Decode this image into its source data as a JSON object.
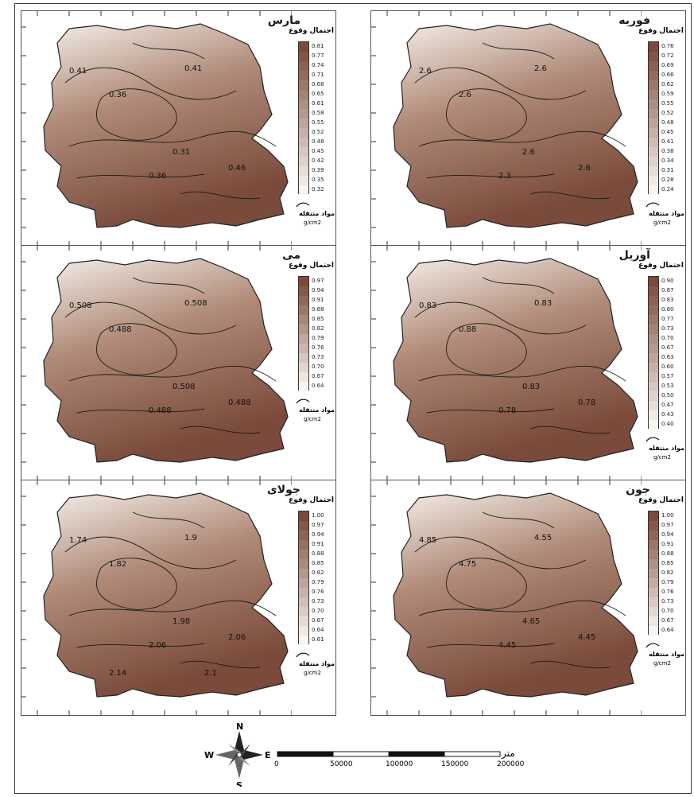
{
  "legend": {
    "title": "احتمال وقوع",
    "sediment_label": "مواد منتقله",
    "unit": "g/cm2"
  },
  "panels": [
    {
      "id": "march",
      "title": "مارس",
      "ticks": [
        "0.81",
        "0.77",
        "0.74",
        "0.71",
        "0.68",
        "0.65",
        "0.61",
        "0.58",
        "0.55",
        "0.52",
        "0.48",
        "0.45",
        "0.42",
        "0.39",
        "0.35",
        "0.32"
      ],
      "contours": [
        "0.41",
        "0.36",
        "0.41",
        "0.31",
        "0.36",
        "0.46"
      ]
    },
    {
      "id": "february",
      "title": "فوریه",
      "ticks": [
        "0.76",
        "0.72",
        "0.69",
        "0.66",
        "0.62",
        "0.59",
        "0.55",
        "0.52",
        "0.48",
        "0.45",
        "0.41",
        "0.38",
        "0.34",
        "0.31",
        "0.28",
        "0.24"
      ],
      "contours": [
        "2.6",
        "2.6",
        "2.6",
        "2.6",
        "2.3",
        "2.6"
      ]
    },
    {
      "id": "may",
      "title": "می",
      "ticks": [
        "0.97",
        "0.94",
        "0.91",
        "0.88",
        "0.85",
        "0.82",
        "0.79",
        "0.76",
        "0.73",
        "0.70",
        "0.67",
        "0.64"
      ],
      "contours": [
        "0.508",
        "0.488",
        "0.508",
        "0.508",
        "0.488",
        "0.488"
      ]
    },
    {
      "id": "april",
      "title": "آوریل",
      "ticks": [
        "0.90",
        "0.87",
        "0.83",
        "0.80",
        "0.77",
        "0.73",
        "0.70",
        "0.67",
        "0.63",
        "0.60",
        "0.57",
        "0.53",
        "0.50",
        "0.47",
        "0.43",
        "0.40"
      ],
      "contours": [
        "0.83",
        "0.88",
        "0.83",
        "0.83",
        "0.78",
        "0.78"
      ]
    },
    {
      "id": "july",
      "title": "جولای",
      "ticks": [
        "1.00",
        "0.97",
        "0.94",
        "0.91",
        "0.88",
        "0.85",
        "0.82",
        "0.79",
        "0.76",
        "0.73",
        "0.70",
        "0.67",
        "0.64",
        "0.61"
      ],
      "contours": [
        "1.74",
        "1.82",
        "1.9",
        "1.98",
        "2.06",
        "2.06",
        "2.14",
        "2.1"
      ]
    },
    {
      "id": "june",
      "title": "جون",
      "ticks": [
        "1.00",
        "0.97",
        "0.94",
        "0.91",
        "0.88",
        "0.85",
        "0.82",
        "0.79",
        "0.76",
        "0.73",
        "0.70",
        "0.67",
        "0.64"
      ],
      "contours": [
        "4.85",
        "4.75",
        "4.55",
        "4.65",
        "4.45",
        "4.45"
      ]
    }
  ],
  "scale": {
    "unit_label": "متر",
    "ticks": [
      "0",
      "50000",
      "100000",
      "150000",
      "200000"
    ]
  },
  "compass": {
    "n": "N",
    "s": "S",
    "e": "E",
    "w": "W"
  },
  "colors": {
    "dark": "#7a4a3a",
    "mid": "#b08a78",
    "light": "#f4eee8"
  }
}
